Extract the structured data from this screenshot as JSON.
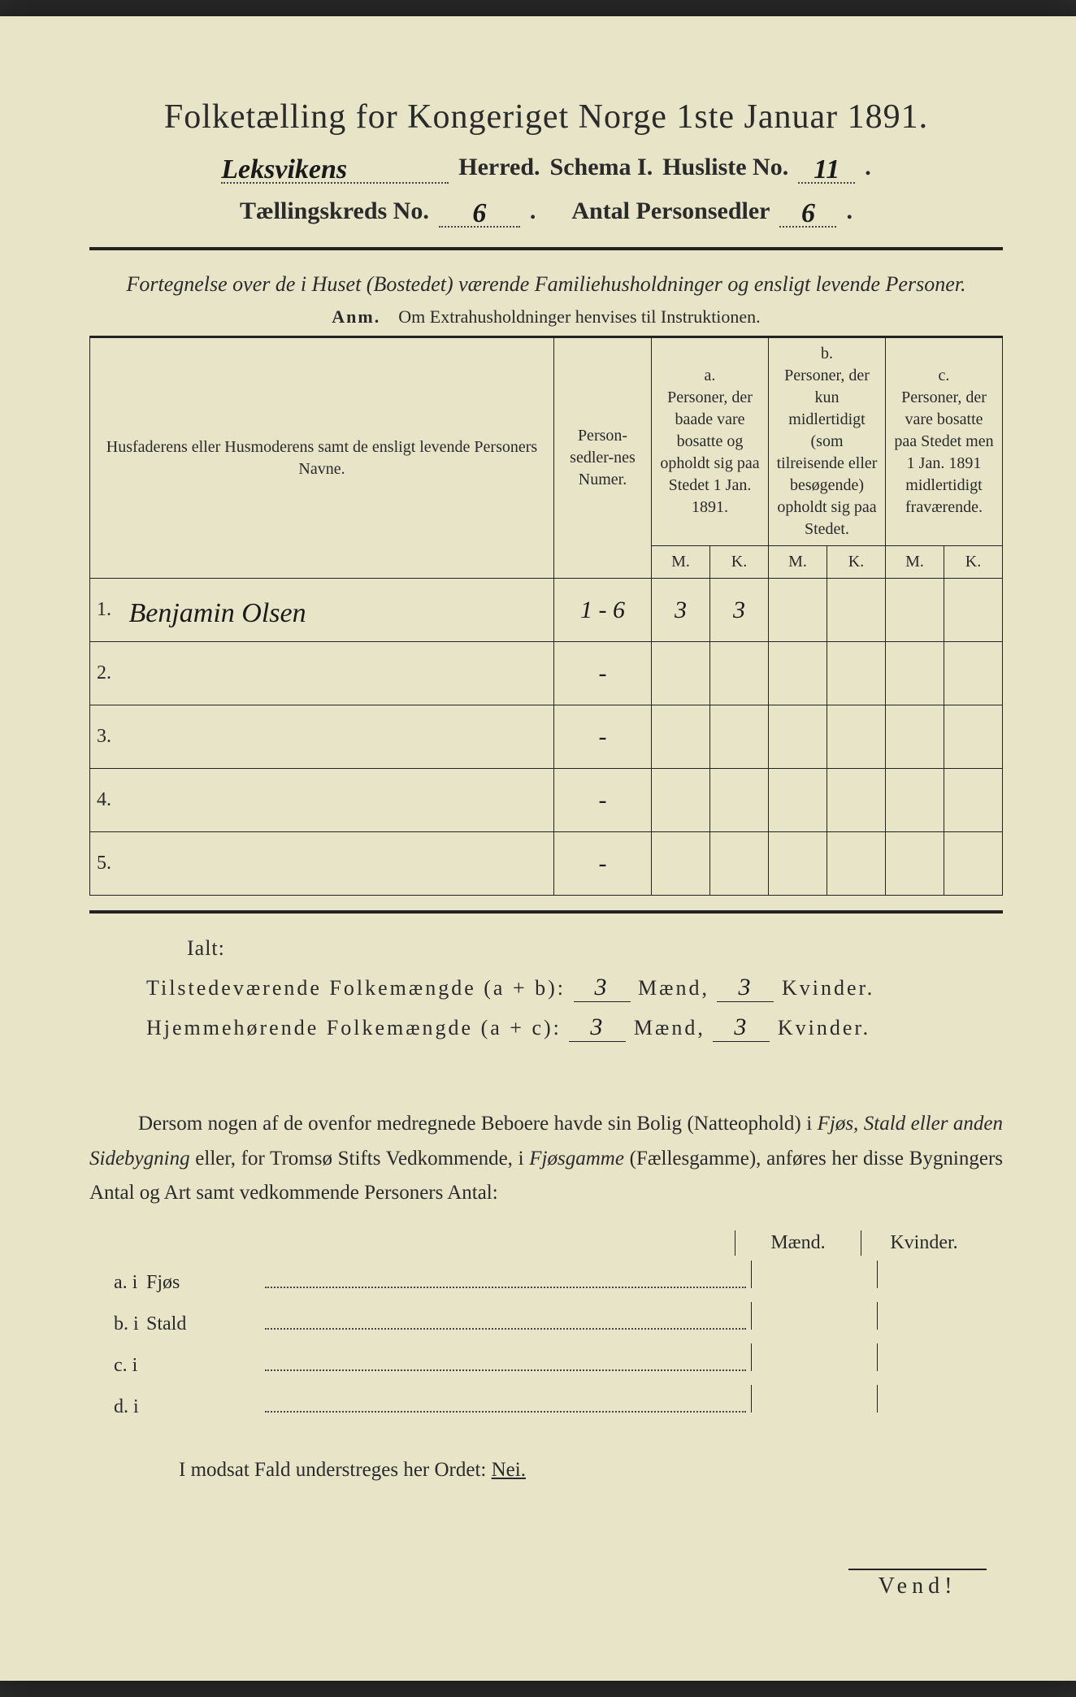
{
  "header": {
    "title": "Folketælling for Kongeriget Norge 1ste Januar 1891.",
    "herred_value": "Leksvikens",
    "herred_label": "Herred.",
    "schema_label": "Schema I.",
    "husliste_label": "Husliste No.",
    "husliste_value": "11",
    "tkreds_label": "Tællingskreds No.",
    "tkreds_value": "6",
    "antal_label": "Antal Personsedler",
    "antal_value": "6"
  },
  "intro": {
    "line": "Fortegnelse over de i Huset (Bostedet) værende Familiehusholdninger og ensligt levende Personer.",
    "anm_label": "Anm.",
    "anm_text": "Om Extrahusholdninger henvises til Instruktionen."
  },
  "table": {
    "col_names": "Husfaderens eller Husmoderens samt de ensligt levende Personers Navne.",
    "col_num": "Person-sedler-nes Numer.",
    "col_a_head": "a.",
    "col_a": "Personer, der baade vare bosatte og opholdt sig paa Stedet 1 Jan. 1891.",
    "col_b_head": "b.",
    "col_b": "Personer, der kun midlertidigt (som tilreisende eller besøgende) opholdt sig paa Stedet.",
    "col_c_head": "c.",
    "col_c": "Personer, der vare bosatte paa Stedet men 1 Jan. 1891 midlertidigt fraværende.",
    "m": "M.",
    "k": "K.",
    "rows": [
      {
        "n": "1.",
        "name": "Benjamin Olsen",
        "num": "1 - 6",
        "a_m": "3",
        "a_k": "3",
        "b_m": "",
        "b_k": "",
        "c_m": "",
        "c_k": ""
      },
      {
        "n": "2.",
        "name": "",
        "num": "-",
        "a_m": "",
        "a_k": "",
        "b_m": "",
        "b_k": "",
        "c_m": "",
        "c_k": ""
      },
      {
        "n": "3.",
        "name": "",
        "num": "-",
        "a_m": "",
        "a_k": "",
        "b_m": "",
        "b_k": "",
        "c_m": "",
        "c_k": ""
      },
      {
        "n": "4.",
        "name": "",
        "num": "-",
        "a_m": "",
        "a_k": "",
        "b_m": "",
        "b_k": "",
        "c_m": "",
        "c_k": ""
      },
      {
        "n": "5.",
        "name": "",
        "num": "-",
        "a_m": "",
        "a_k": "",
        "b_m": "",
        "b_k": "",
        "c_m": "",
        "c_k": ""
      }
    ]
  },
  "totals": {
    "ialt": "Ialt:",
    "line1_label": "Tilstedeværende Folkemængde (a + b):",
    "line2_label": "Hjemmehørende Folkemængde (a + c):",
    "maend": "Mænd,",
    "kvinder": "Kvinder.",
    "l1_m": "3",
    "l1_k": "3",
    "l2_m": "3",
    "l2_k": "3"
  },
  "para": "Dersom nogen af de ovenfor medregnede Beboere havde sin Bolig (Natteophold) i Fjøs, Stald eller anden Sidebygning eller, for Tromsø Stifts Vedkommende, i Fjøsgamme (Fællesgamme), anføres her disse Bygningers Antal og Art samt vedkommende Personers Antal:",
  "dwelling": {
    "maend": "Mænd.",
    "kvinder": "Kvinder.",
    "rows": [
      {
        "lab": "a. i",
        "txt": "Fjøs"
      },
      {
        "lab": "b. i",
        "txt": "Stald"
      },
      {
        "lab": "c. i",
        "txt": ""
      },
      {
        "lab": "d. i",
        "txt": ""
      }
    ]
  },
  "nei": {
    "text": "I modsat Fald understreges her Ordet:",
    "word": "Nei."
  },
  "vend": "Vend!"
}
